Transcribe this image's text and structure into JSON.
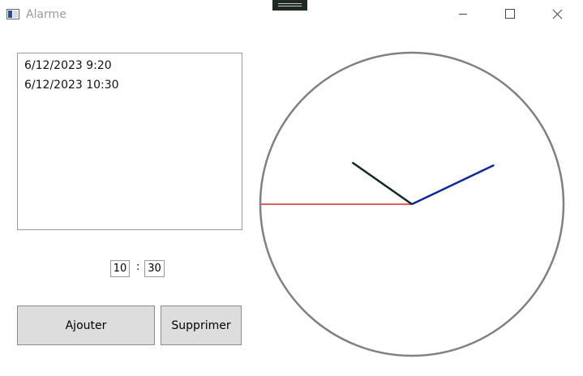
{
  "window": {
    "title": "Alarme"
  },
  "alarms": [
    "6/12/2023 9:20",
    "6/12/2023 10:30"
  ],
  "time_input": {
    "hours": "10",
    "separator": ":",
    "minutes": "30"
  },
  "buttons": {
    "add": "Ajouter",
    "remove": "Supprimer"
  },
  "clock": {
    "hour": 10,
    "minute": 10,
    "second": 45,
    "colors": {
      "face": "#808080",
      "hour_hand": "#0f2a1a",
      "minute_hand": "#0a2a9a",
      "second_hand": "#e06060"
    }
  }
}
